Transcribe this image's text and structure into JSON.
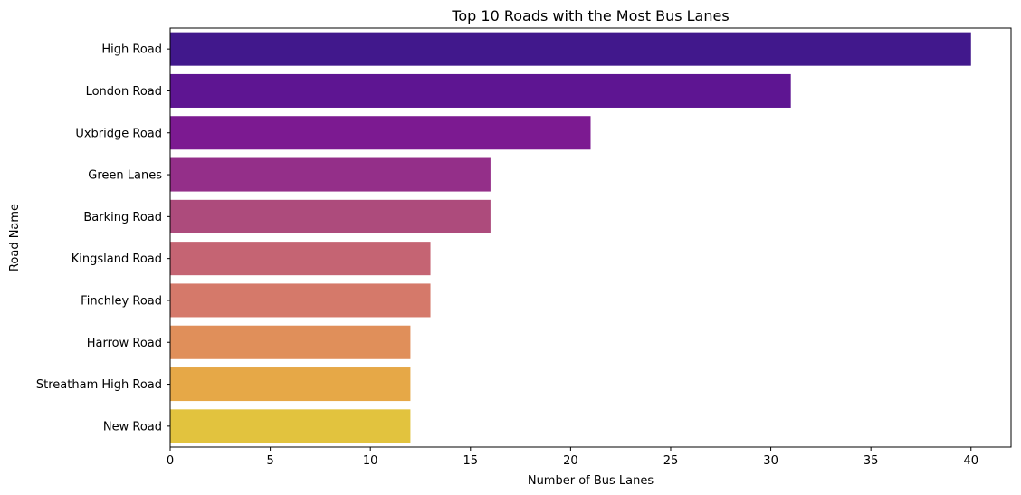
{
  "chart_data": {
    "type": "bar",
    "orientation": "horizontal",
    "title": "Top 10 Roads with the Most Bus Lanes",
    "xlabel": "Number of Bus Lanes",
    "ylabel": "Road Name",
    "categories": [
      "High Road",
      "London Road",
      "Uxbridge Road",
      "Green Lanes",
      "Barking Road",
      "Kingsland Road",
      "Finchley Road",
      "Harrow Road",
      "Streatham High Road",
      "New Road"
    ],
    "values": [
      40,
      31,
      21,
      16,
      16,
      13,
      13,
      12,
      12,
      12
    ],
    "xlim": [
      0,
      42
    ],
    "xticks": [
      0,
      5,
      10,
      15,
      20,
      25,
      30,
      35,
      40
    ],
    "grid": false,
    "colors": [
      "#41188c",
      "#5e1592",
      "#7c1a91",
      "#942f89",
      "#ad4b7c",
      "#c56473",
      "#d5796a",
      "#e08f5a",
      "#e6a847",
      "#e2c33e"
    ]
  }
}
